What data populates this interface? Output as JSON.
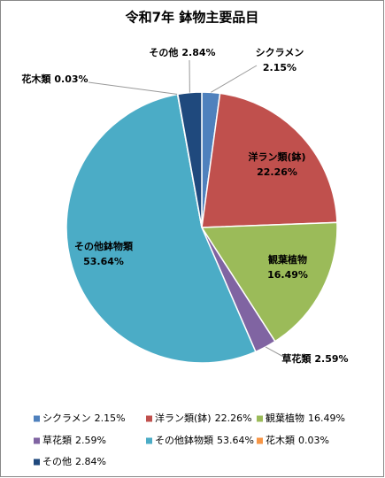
{
  "chart_data": {
    "type": "pie",
    "title": "令和7年 鉢物主要品目",
    "categories": [
      "シクラメン",
      "洋ラン類(鉢)",
      "観葉植物",
      "草花類",
      "その他鉢物類",
      "花木類",
      "その他"
    ],
    "values": [
      2.15,
      22.26,
      16.49,
      2.59,
      53.64,
      0.03,
      2.84
    ],
    "value_labels": [
      "2.15%",
      "22.26%",
      "16.49%",
      "2.59%",
      "53.64%",
      "0.03%",
      "2.84%"
    ],
    "colors": [
      "#4f81bd",
      "#c0504d",
      "#9bbb59",
      "#8064a2",
      "#4bacc6",
      "#f79646",
      "#1f497d"
    ],
    "legend": "bottom"
  }
}
